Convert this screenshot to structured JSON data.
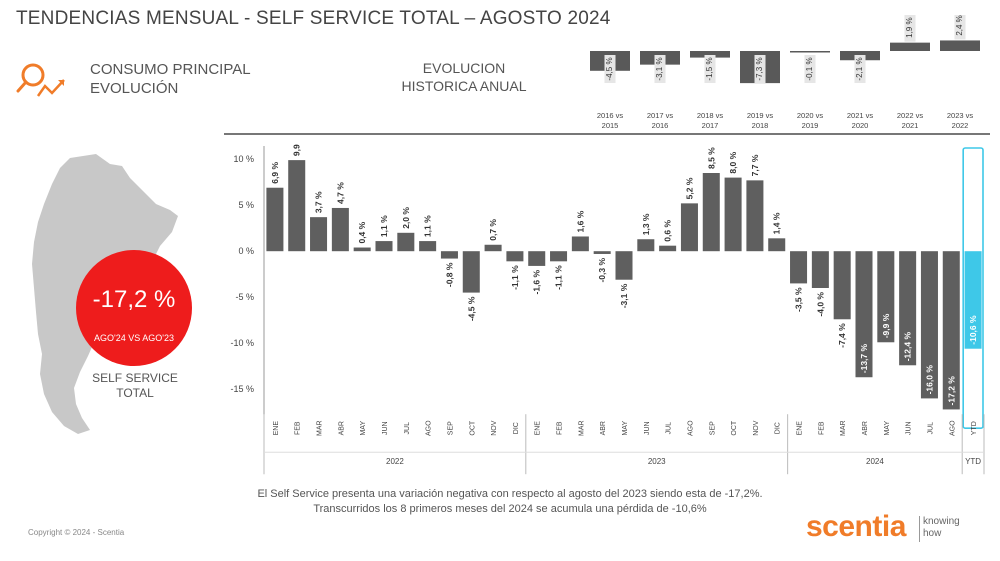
{
  "header": {
    "title": "TENDENCIAS MENSUAL - SELF SERVICE TOTAL –   AGOSTO 2024",
    "subtitle_line1": "CONSUMO PRINCIPAL",
    "subtitle_line2": "EVOLUCIÓN",
    "annual_title_line1": "EVOLUCION",
    "annual_title_line2": "HISTORICA ANUAL"
  },
  "kpi": {
    "value": "-17,2 %",
    "caption": "AGO'24 VS AGO'23",
    "label_line1": "SELF SERVICE",
    "label_line2": "TOTAL"
  },
  "colors": {
    "bar": "#5f5f5f",
    "highlight": "#3ec8e8",
    "kpi": "#ee1c1c",
    "brand": "#f07c29",
    "annual_bar": "#595959"
  },
  "chart_data": [
    {
      "type": "bar",
      "title": "Evolucion historica anual",
      "categories": [
        "2016 vs 2015",
        "2017 vs 2016",
        "2018 vs 2017",
        "2019 vs 2018",
        "2020 vs 2019",
        "2021 vs 2020",
        "2022 vs 2021",
        "2023 vs 2022"
      ],
      "values": [
        -4.5,
        -3.1,
        -1.5,
        -7.3,
        -0.1,
        -2.1,
        1.9,
        2.4
      ],
      "labels": [
        "-4,5 %",
        "-3,1 %",
        "-1,5 %",
        "-7,3 %",
        "-0,1 %",
        "-2,1 %",
        "1,9 %",
        "2,4 %"
      ],
      "ylim": [
        -8,
        3
      ]
    },
    {
      "type": "bar",
      "title": "Tendencias mensual - Self Service Total",
      "ylim": [
        -17.5,
        11
      ],
      "yticks": [
        10,
        5,
        0,
        -5,
        -10,
        -15
      ],
      "ytick_labels": [
        "10 %",
        "5 %",
        "0 %",
        "-5 %",
        "-10 %",
        "-15 %"
      ],
      "categories": [
        "ENE",
        "FEB",
        "MAR",
        "ABR",
        "MAY",
        "JUN",
        "JUL",
        "AGO",
        "SEP",
        "OCT",
        "NOV",
        "DIC",
        "ENE",
        "FEB",
        "MAR",
        "ABR",
        "MAY",
        "JUN",
        "JUL",
        "AGO",
        "SEP",
        "OCT",
        "NOV",
        "DIC",
        "ENE",
        "FEB",
        "MAR",
        "ABR",
        "MAY",
        "JUN",
        "JUL",
        "AGO",
        "YTD"
      ],
      "values": [
        6.9,
        9.9,
        3.7,
        4.7,
        0.4,
        1.1,
        2.0,
        1.1,
        -0.8,
        -4.5,
        0.7,
        -1.1,
        -1.6,
        -1.1,
        1.6,
        -0.3,
        -3.1,
        1.3,
        0.6,
        5.2,
        8.5,
        8.0,
        7.7,
        1.4,
        -3.5,
        -4.0,
        -7.4,
        -13.7,
        -9.9,
        -12.4,
        -16.0,
        -17.2,
        -10.6
      ],
      "labels": [
        "6,9 %",
        "9,9 %",
        "3,7 %",
        "4,7 %",
        "0,4 %",
        "1,1 %",
        "2,0 %",
        "1,1 %",
        "-0,8 %",
        "-4,5 %",
        "0,7 %",
        "-1,1 %",
        "-1,6 %",
        "-1,1 %",
        "1,6 %",
        "-0,3 %",
        "-3,1 %",
        "1,3 %",
        "0,6 %",
        "5,2 %",
        "8,5 %",
        "8,0 %",
        "7,7 %",
        "1,4 %",
        "-3,5 %",
        "-4,0 %",
        "-7,4 %",
        "-13,7 %",
        "-9,9 %",
        "-12,4 %",
        "-16,0 %",
        "-17,2 %",
        "-10,6 %"
      ],
      "groups": [
        {
          "label": "2022",
          "count": 12
        },
        {
          "label": "2023",
          "count": 12
        },
        {
          "label": "2024",
          "count": 8
        },
        {
          "label": "YTD",
          "count": 1
        }
      ],
      "highlight_index": 32
    }
  ],
  "footer": {
    "line1": "El Self Service presenta una variación negativa con respecto al agosto del 2023 siendo esta de -17,2%.",
    "line2": "Transcurridos los 8 primeros meses del 2024 se acumula una pérdida de -10,6%"
  },
  "copyright": "Copyright © 2024 - Scentia",
  "brand": {
    "name": "scentia",
    "tagline_line1": "knowing",
    "tagline_line2": "how"
  }
}
